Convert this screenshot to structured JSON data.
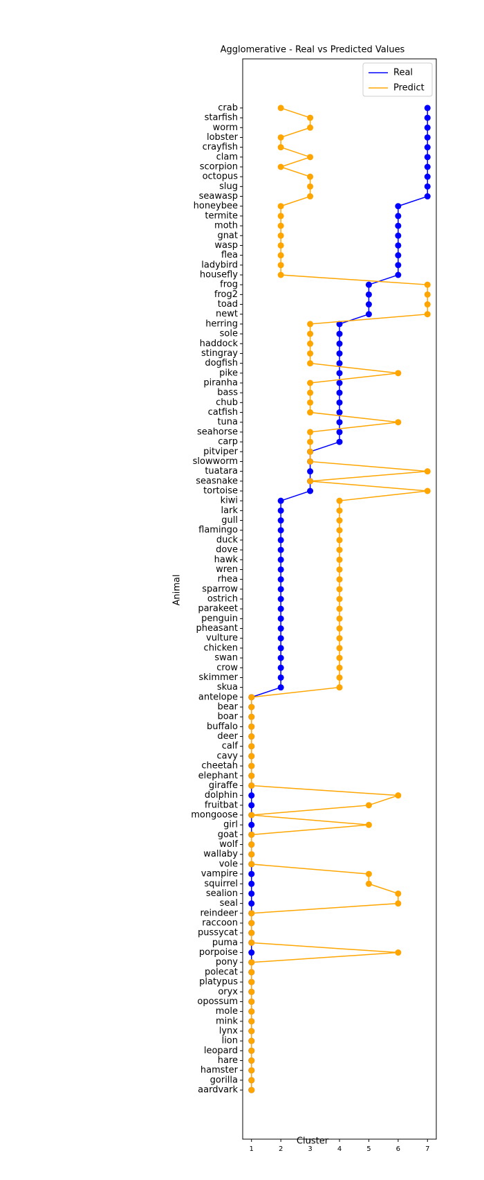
{
  "chart_data": {
    "type": "line",
    "title": "Agglomerative - Real vs Predicted Values",
    "x_label": "Cluster",
    "y_label": "Animal",
    "categories": [
      "crab",
      "starfish",
      "worm",
      "lobster",
      "crayfish",
      "clam",
      "scorpion",
      "octopus",
      "slug",
      "seawasp",
      "honeybee",
      "termite",
      "moth",
      "gnat",
      "wasp",
      "flea",
      "ladybird",
      "housefly",
      "frog",
      "frog2",
      "toad",
      "newt",
      "herring",
      "sole",
      "haddock",
      "stingray",
      "dogfish",
      "pike",
      "piranha",
      "bass",
      "chub",
      "catfish",
      "tuna",
      "seahorse",
      "carp",
      "pitviper",
      "slowworm",
      "tuatara",
      "seasnake",
      "tortoise",
      "kiwi",
      "lark",
      "gull",
      "flamingo",
      "duck",
      "dove",
      "hawk",
      "wren",
      "rhea",
      "sparrow",
      "ostrich",
      "parakeet",
      "penguin",
      "pheasant",
      "vulture",
      "chicken",
      "swan",
      "crow",
      "skimmer",
      "skua",
      "antelope",
      "bear",
      "boar",
      "buffalo",
      "deer",
      "calf",
      "cavy",
      "cheetah",
      "elephant",
      "giraffe",
      "dolphin",
      "fruitbat",
      "mongoose",
      "girl",
      "goat",
      "wolf",
      "wallaby",
      "vole",
      "vampire",
      "squirrel",
      "sealion",
      "seal",
      "reindeer",
      "raccoon",
      "pussycat",
      "puma",
      "porpoise",
      "pony",
      "polecat",
      "platypus",
      "oryx",
      "opossum",
      "mole",
      "mink",
      "lynx",
      "lion",
      "leopard",
      "hare",
      "hamster",
      "gorilla",
      "aardvark"
    ],
    "series": [
      {
        "name": "Real",
        "color": "#0000ff",
        "values": [
          7,
          7,
          7,
          7,
          7,
          7,
          7,
          7,
          7,
          7,
          6,
          6,
          6,
          6,
          6,
          6,
          6,
          6,
          5,
          5,
          5,
          5,
          4,
          4,
          4,
          4,
          4,
          4,
          4,
          4,
          4,
          4,
          4,
          4,
          4,
          3,
          3,
          3,
          3,
          3,
          2,
          2,
          2,
          2,
          2,
          2,
          2,
          2,
          2,
          2,
          2,
          2,
          2,
          2,
          2,
          2,
          2,
          2,
          2,
          2,
          1,
          1,
          1,
          1,
          1,
          1,
          1,
          1,
          1,
          1,
          1,
          1,
          1,
          1,
          1,
          1,
          1,
          1,
          1,
          1,
          1,
          1,
          1,
          1,
          1,
          1,
          1,
          1,
          1,
          1,
          1,
          1,
          1,
          1,
          1,
          1,
          1,
          1,
          1,
          1,
          1
        ]
      },
      {
        "name": "Predict",
        "color": "#ffa500",
        "values": [
          2,
          3,
          3,
          2,
          2,
          3,
          2,
          3,
          3,
          3,
          2,
          2,
          2,
          2,
          2,
          2,
          2,
          2,
          7,
          7,
          7,
          7,
          3,
          3,
          3,
          3,
          3,
          6,
          3,
          3,
          3,
          3,
          6,
          3,
          3,
          3,
          3,
          7,
          3,
          7,
          4,
          4,
          4,
          4,
          4,
          4,
          4,
          4,
          4,
          4,
          4,
          4,
          4,
          4,
          4,
          4,
          4,
          4,
          4,
          4,
          1,
          1,
          1,
          1,
          1,
          1,
          1,
          1,
          1,
          1,
          6,
          5,
          1,
          5,
          1,
          1,
          1,
          1,
          5,
          5,
          6,
          6,
          1,
          1,
          1,
          1,
          6,
          1,
          1,
          1,
          1,
          1,
          1,
          1,
          1,
          1,
          1,
          1,
          1,
          1,
          1
        ]
      }
    ],
    "xlim": [
      0.7,
      7.3
    ],
    "xticks": [
      1,
      2,
      3,
      4,
      5,
      6,
      7
    ],
    "legend": "upper right"
  }
}
